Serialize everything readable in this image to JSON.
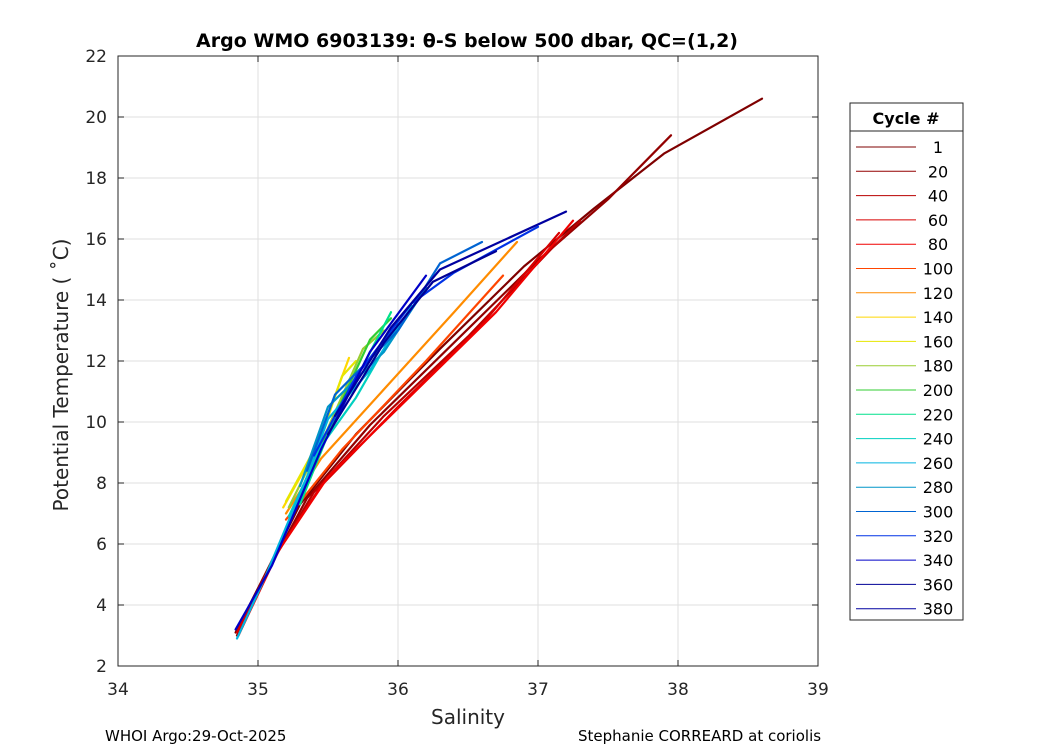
{
  "chart_data": {
    "type": "line",
    "title": "Argo WMO 6903139: θ-S below 500 dbar,  QC=(1,2)",
    "xlabel": "Salinity",
    "ylabel": "Potential Temperature ( ˚C)",
    "xlim": [
      34,
      39
    ],
    "ylim": [
      2,
      22
    ],
    "xticks": [
      "34",
      "35",
      "36",
      "37",
      "38",
      "39"
    ],
    "yticks": [
      "2",
      "4",
      "6",
      "8",
      "10",
      "12",
      "14",
      "16",
      "18",
      "20",
      "22"
    ],
    "grid": true,
    "legend_title": "Cycle #",
    "legend_position": "right",
    "series": [
      {
        "name": "1",
        "color": "#7f0000",
        "x": [
          34.84,
          35.05,
          35.3,
          35.7,
          36.3,
          36.9,
          37.4,
          37.9,
          38.6
        ],
        "y": [
          3.1,
          5.0,
          7.3,
          9.6,
          12.4,
          15.1,
          17.0,
          18.8,
          20.6
        ]
      },
      {
        "name": "20",
        "color": "#930000",
        "x": [
          34.85,
          35.08,
          35.35,
          35.8,
          36.4,
          37.0,
          37.5,
          37.95
        ],
        "y": [
          3.0,
          5.2,
          7.5,
          9.9,
          12.6,
          15.3,
          17.3,
          19.4
        ]
      },
      {
        "name": "40",
        "color": "#b80000",
        "x": [
          34.86,
          35.1,
          35.4,
          35.9,
          36.5,
          37.1,
          37.3
        ],
        "y": [
          3.0,
          5.4,
          7.7,
          10.2,
          12.8,
          15.7,
          16.6
        ]
      },
      {
        "name": "60",
        "color": "#d80000",
        "x": [
          34.85,
          35.12,
          35.45,
          36.0,
          36.6,
          37.15
        ],
        "y": [
          3.1,
          5.6,
          7.9,
          10.5,
          13.2,
          16.2
        ]
      },
      {
        "name": "80",
        "color": "#f00000",
        "x": [
          34.86,
          35.15,
          35.5,
          36.1,
          36.7,
          37.25
        ],
        "y": [
          3.0,
          5.8,
          8.2,
          10.9,
          13.6,
          16.6
        ]
      },
      {
        "name": "100",
        "color": "#ff4500",
        "x": [
          35.2,
          35.6,
          36.2,
          36.75
        ],
        "y": [
          6.8,
          9.1,
          12.0,
          14.8
        ]
      },
      {
        "name": "120",
        "color": "#ff8c00",
        "x": [
          35.2,
          35.45,
          36.4,
          36.85
        ],
        "y": [
          7.0,
          8.8,
          13.6,
          15.9
        ]
      },
      {
        "name": "140",
        "color": "#ffd700",
        "x": [
          35.18,
          35.4,
          35.65
        ],
        "y": [
          7.2,
          9.0,
          12.1
        ]
      },
      {
        "name": "160",
        "color": "#e6e600",
        "x": [
          35.2,
          35.45,
          35.6,
          35.7
        ],
        "y": [
          7.4,
          9.5,
          11.5,
          12.0
        ]
      },
      {
        "name": "180",
        "color": "#9acd32",
        "x": [
          35.22,
          35.5,
          35.75,
          35.9
        ],
        "y": [
          7.2,
          9.8,
          12.4,
          13.0
        ]
      },
      {
        "name": "200",
        "color": "#32cd32",
        "x": [
          35.25,
          35.55,
          35.8,
          35.95
        ],
        "y": [
          7.1,
          10.2,
          12.7,
          13.4
        ]
      },
      {
        "name": "220",
        "color": "#00e08c",
        "x": [
          35.3,
          35.5,
          35.7,
          35.95
        ],
        "y": [
          7.3,
          9.6,
          11.4,
          13.6
        ]
      },
      {
        "name": "240",
        "color": "#00cfc0",
        "x": [
          35.22,
          35.45,
          35.7,
          36.0
        ],
        "y": [
          6.9,
          9.2,
          10.8,
          13.2
        ]
      },
      {
        "name": "260",
        "color": "#00b4e0",
        "x": [
          34.85,
          35.05,
          35.35,
          35.5,
          35.8,
          36.1
        ],
        "y": [
          2.9,
          4.9,
          8.2,
          10.1,
          11.7,
          13.8
        ]
      },
      {
        "name": "280",
        "color": "#0096c8",
        "x": [
          35.3,
          35.5,
          35.9,
          36.2
        ],
        "y": [
          7.9,
          10.5,
          12.3,
          14.4
        ]
      },
      {
        "name": "300",
        "color": "#0064d2",
        "x": [
          35.35,
          35.55,
          36.0,
          36.3,
          36.6
        ],
        "y": [
          8.4,
          10.9,
          13.0,
          15.2,
          15.9
        ]
      },
      {
        "name": "320",
        "color": "#0032e6",
        "x": [
          35.4,
          35.7,
          36.1,
          36.4,
          37.0
        ],
        "y": [
          8.9,
          11.5,
          13.9,
          14.9,
          16.4
        ]
      },
      {
        "name": "340",
        "color": "#0000c8",
        "x": [
          34.84,
          35.1,
          35.45,
          35.8,
          36.2
        ],
        "y": [
          3.2,
          5.3,
          9.1,
          12.3,
          14.8
        ]
      },
      {
        "name": "360",
        "color": "#000096",
        "x": [
          35.5,
          35.9,
          36.25,
          36.7
        ],
        "y": [
          9.6,
          12.6,
          14.6,
          15.6
        ]
      },
      {
        "name": "380",
        "color": "#0000a0",
        "x": [
          35.55,
          35.95,
          36.3,
          37.2
        ],
        "y": [
          10.2,
          13.1,
          15.0,
          16.9
        ]
      }
    ]
  },
  "footer": {
    "left": "WHOI Argo:29-Oct-2025",
    "right": "Stephanie CORREARD at coriolis"
  }
}
